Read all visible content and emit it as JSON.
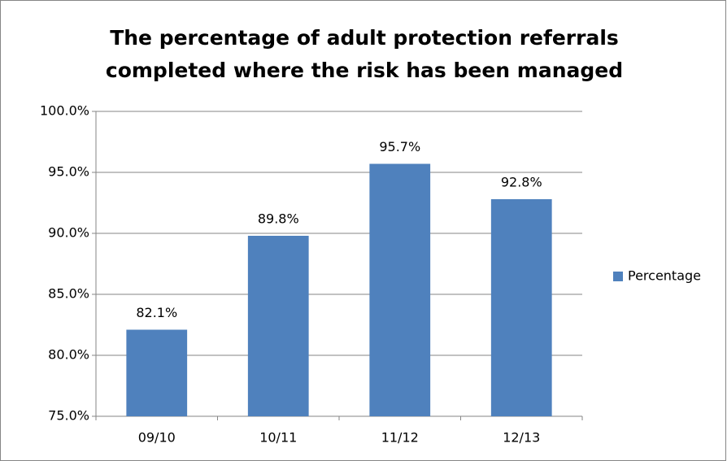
{
  "chart_data": {
    "type": "bar",
    "title": [
      "The percentage of adult protection referrals",
      "completed where the risk has been managed"
    ],
    "categories": [
      "09/10",
      "10/11",
      "11/12",
      "12/13"
    ],
    "series": [
      {
        "name": "Percentage",
        "color": "#4f81bd",
        "values": [
          82.1,
          89.8,
          95.7,
          92.8
        ],
        "value_labels": [
          "82.1%",
          "89.8%",
          "95.7%",
          "92.8%"
        ]
      }
    ],
    "ylim": [
      75,
      100
    ],
    "yticks": [
      {
        "value": 75,
        "label": "75.0%"
      },
      {
        "value": 80,
        "label": "80.0%"
      },
      {
        "value": 85,
        "label": "85.0%"
      },
      {
        "value": 90,
        "label": "90.0%"
      },
      {
        "value": 95,
        "label": "95.0%"
      },
      {
        "value": 100,
        "label": "100.0%"
      }
    ],
    "grid": true,
    "legend": "right"
  }
}
